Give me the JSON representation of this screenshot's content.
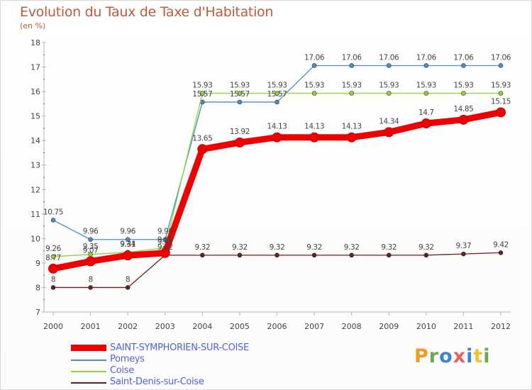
{
  "title": "Evolution du Taux de Taxe d'Habitation",
  "subtitle": "(en %)",
  "logo": {
    "letters": [
      "P",
      "r",
      "o",
      "x",
      "i",
      "t",
      "i"
    ],
    "colors": [
      "#f29b1f",
      "#6aa84f",
      "#3d85c6",
      "#e06666",
      "#3d85c6",
      "#f1c232",
      "#6aa84f"
    ]
  },
  "chart_data": {
    "type": "line",
    "title": "Evolution du Taux de Taxe d'Habitation",
    "ylabel": "(en %)",
    "xlabel": "",
    "ylim": [
      7,
      18
    ],
    "yticks": [
      7,
      8,
      9,
      10,
      11,
      12,
      13,
      14,
      15,
      16,
      17,
      18
    ],
    "categories": [
      "2000",
      "2001",
      "2002",
      "2003",
      "2004",
      "2005",
      "2006",
      "2007",
      "2008",
      "2009",
      "2010",
      "2011",
      "2012"
    ],
    "series": [
      {
        "name": "Pomeys",
        "color": "#4a8fc6",
        "values": [
          10.75,
          9.96,
          9.96,
          9.96,
          15.57,
          15.57,
          15.57,
          17.06,
          17.06,
          17.06,
          17.06,
          17.06,
          17.06
        ],
        "labels": [
          "10.75",
          "9.96",
          "9.96",
          "9.96",
          "15.57",
          "15.57",
          "15.57",
          "17.06",
          "17.06",
          "17.06",
          "17.06",
          "17.06",
          "17.06"
        ]
      },
      {
        "name": "Coise",
        "color": "#8ed43a",
        "values": [
          9.26,
          9.35,
          9.44,
          9.62,
          15.93,
          15.93,
          15.93,
          15.93,
          15.93,
          15.93,
          15.93,
          15.93,
          15.93
        ],
        "labels": [
          "9.26",
          "9.35",
          "9.44",
          "9.62",
          "15.93",
          "15.93",
          "15.93",
          "15.93",
          "15.93",
          "15.93",
          "15.93",
          "15.93",
          "15.93"
        ]
      },
      {
        "name": "Saint-Denis-sur-Coise",
        "color": "#6b1d1d",
        "values": [
          8,
          8,
          8,
          9.32,
          9.32,
          9.32,
          9.32,
          9.32,
          9.32,
          9.32,
          9.32,
          9.37,
          9.42
        ],
        "labels": [
          "8",
          "8",
          "8",
          "9.32",
          "9.32",
          "9.32",
          "9.32",
          "9.32",
          "9.32",
          "9.32",
          "9.32",
          "9.37",
          "9.42"
        ]
      },
      {
        "name": "SAINT-SYMPHORIEN-SUR-COISE",
        "color": "#ee0000",
        "values": [
          8.77,
          9.07,
          9.31,
          9.41,
          13.65,
          13.92,
          14.13,
          14.13,
          14.13,
          14.34,
          14.7,
          14.85,
          15.15
        ],
        "labels": [
          "8.77",
          "9.07",
          "9.31",
          "9.41",
          "13.65",
          "13.92",
          "14.13",
          "14.13",
          "14.13",
          "14.34",
          "14.7",
          "14.85",
          "15.15"
        ]
      }
    ],
    "legend": [
      "SAINT-SYMPHORIEN-SUR-COISE",
      "Pomeys",
      "Coise",
      "Saint-Denis-sur-Coise"
    ],
    "legend_position": "bottom-left",
    "grid": false
  }
}
